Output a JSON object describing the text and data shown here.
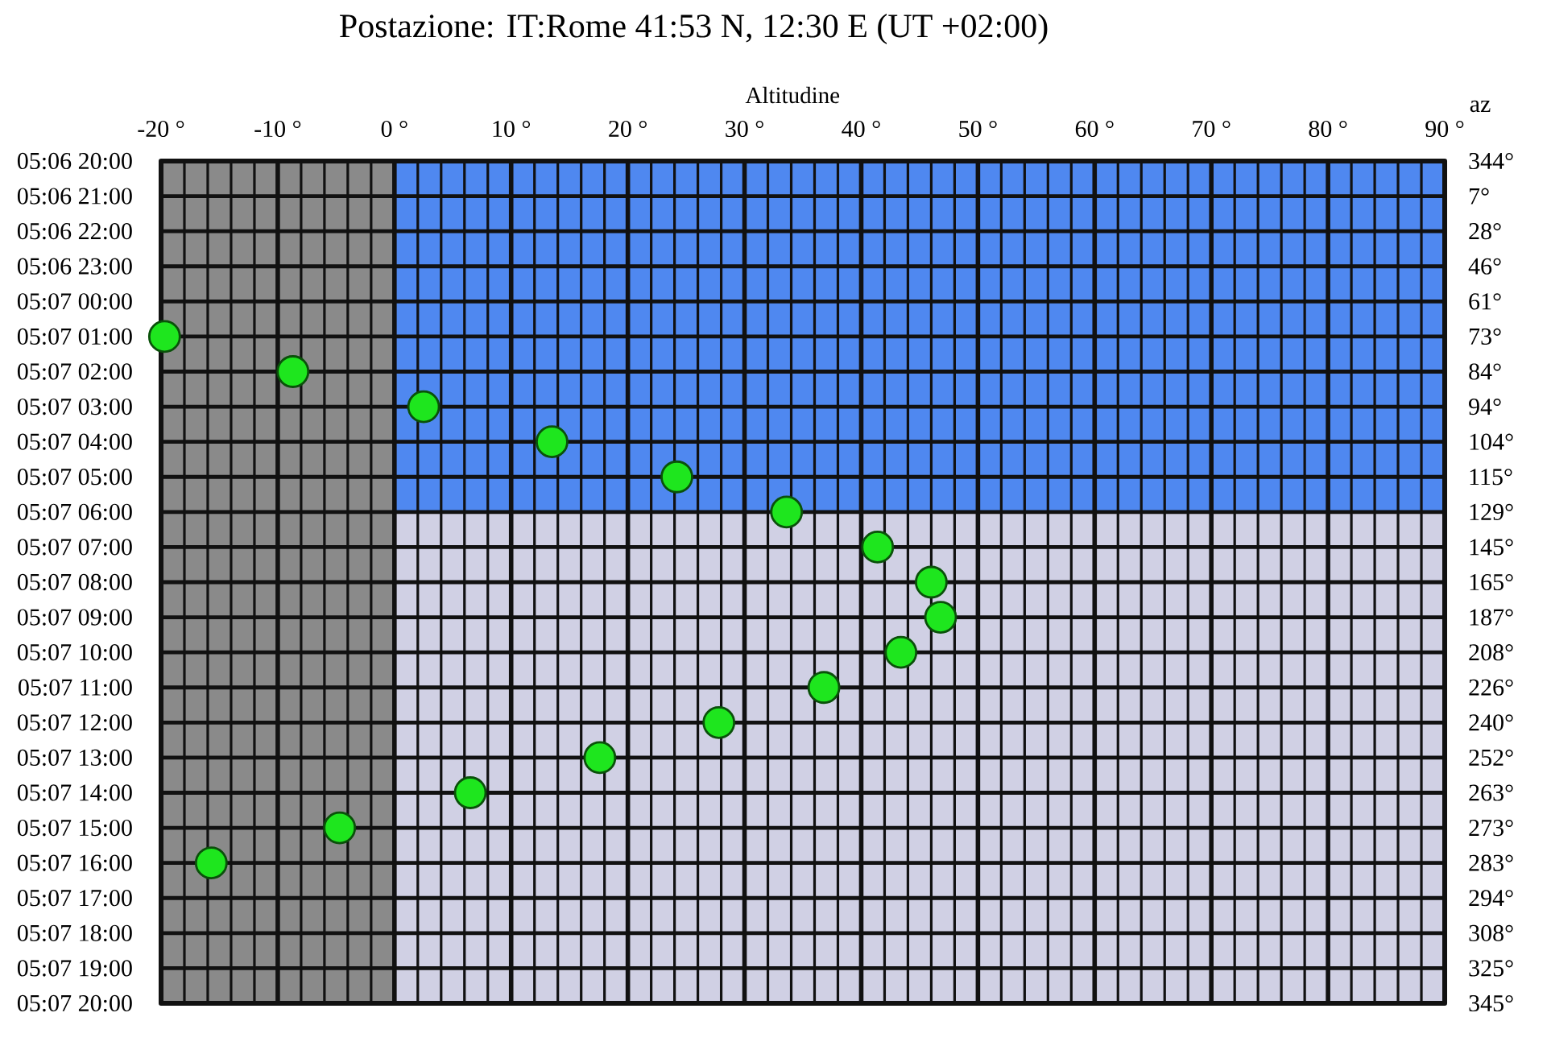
{
  "chart_data": {
    "type": "scatter",
    "title": "Postazione: IT:Rome 41:53 N, 12:30 E (UT +02:00)",
    "xlabel": "Altitudine",
    "y2label": "az",
    "orientation": "horizontal",
    "categories": [
      "05:06 20:00",
      "05:06 21:00",
      "05:06 22:00",
      "05:06 23:00",
      "05:07 00:00",
      "05:07 01:00",
      "05:07 02:00",
      "05:07 03:00",
      "05:07 04:00",
      "05:07 05:00",
      "05:07 06:00",
      "05:07 07:00",
      "05:07 08:00",
      "05:07 09:00",
      "05:07 10:00",
      "05:07 11:00",
      "05:07 12:00",
      "05:07 13:00",
      "05:07 14:00",
      "05:07 15:00",
      "05:07 16:00",
      "05:07 17:00",
      "05:07 18:00",
      "05:07 19:00",
      "05:07 20:00"
    ],
    "y2_categories": [
      "344°",
      "7°",
      "28°",
      "46°",
      "61°",
      "73°",
      "84°",
      "94°",
      "104°",
      "115°",
      "129°",
      "145°",
      "165°",
      "187°",
      "208°",
      "226°",
      "240°",
      "252°",
      "263°",
      "273°",
      "283°",
      "294°",
      "308°",
      "325°",
      "345°"
    ],
    "values": [
      null,
      null,
      null,
      null,
      null,
      -19.7,
      -8.7,
      2.5,
      13.5,
      24.2,
      33.6,
      41.4,
      46.0,
      46.8,
      43.4,
      36.8,
      27.8,
      17.6,
      6.5,
      -4.7,
      -15.7,
      null,
      null,
      null,
      null
    ],
    "color": "#1ee61e",
    "marker": "circle",
    "grid": true,
    "xlim": [
      -20,
      90
    ],
    "xticks": [
      {
        "value": -20,
        "label": "-20 °"
      },
      {
        "value": -18,
        "label": null
      },
      {
        "value": -16,
        "label": null
      },
      {
        "value": -14,
        "label": null
      },
      {
        "value": -12,
        "label": null
      },
      {
        "value": -10,
        "label": "-10 °"
      },
      {
        "value": -8,
        "label": null
      },
      {
        "value": -6,
        "label": null
      },
      {
        "value": -4,
        "label": null
      },
      {
        "value": -2,
        "label": null
      },
      {
        "value": 0,
        "label": "0 °"
      },
      {
        "value": 2,
        "label": null
      },
      {
        "value": 4,
        "label": null
      },
      {
        "value": 6,
        "label": null
      },
      {
        "value": 8,
        "label": null
      },
      {
        "value": 10,
        "label": "10 °"
      },
      {
        "value": 12,
        "label": null
      },
      {
        "value": 14,
        "label": null
      },
      {
        "value": 16,
        "label": null
      },
      {
        "value": 18,
        "label": null
      },
      {
        "value": 20,
        "label": "20 °"
      },
      {
        "value": 22,
        "label": null
      },
      {
        "value": 24,
        "label": null
      },
      {
        "value": 26,
        "label": null
      },
      {
        "value": 28,
        "label": null
      },
      {
        "value": 30,
        "label": "30 °"
      },
      {
        "value": 32,
        "label": null
      },
      {
        "value": 34,
        "label": null
      },
      {
        "value": 36,
        "label": null
      },
      {
        "value": 38,
        "label": null
      },
      {
        "value": 40,
        "label": "40 °"
      },
      {
        "value": 42,
        "label": null
      },
      {
        "value": 44,
        "label": null
      },
      {
        "value": 46,
        "label": null
      },
      {
        "value": 48,
        "label": null
      },
      {
        "value": 50,
        "label": "50 °"
      },
      {
        "value": 52,
        "label": null
      },
      {
        "value": 54,
        "label": null
      },
      {
        "value": 56,
        "label": null
      },
      {
        "value": 58,
        "label": null
      },
      {
        "value": 60,
        "label": "60 °"
      },
      {
        "value": 62,
        "label": null
      },
      {
        "value": 64,
        "label": null
      },
      {
        "value": 66,
        "label": null
      },
      {
        "value": 68,
        "label": null
      },
      {
        "value": 70,
        "label": "70 °"
      },
      {
        "value": 72,
        "label": null
      },
      {
        "value": 74,
        "label": null
      },
      {
        "value": 76,
        "label": null
      },
      {
        "value": 78,
        "label": null
      },
      {
        "value": 80,
        "label": "80 °"
      },
      {
        "value": 82,
        "label": null
      },
      {
        "value": 84,
        "label": null
      },
      {
        "value": 86,
        "label": null
      },
      {
        "value": 88,
        "label": null
      },
      {
        "value": 90,
        "label": "90 °"
      }
    ],
    "bands": [
      {
        "axis": "y",
        "from": "05:06 20:00",
        "to": "05:07 06:00",
        "color": "#4f88f0"
      },
      {
        "axis": "x",
        "from": -20,
        "to": 0,
        "color": "#8a8a8a"
      }
    ]
  }
}
